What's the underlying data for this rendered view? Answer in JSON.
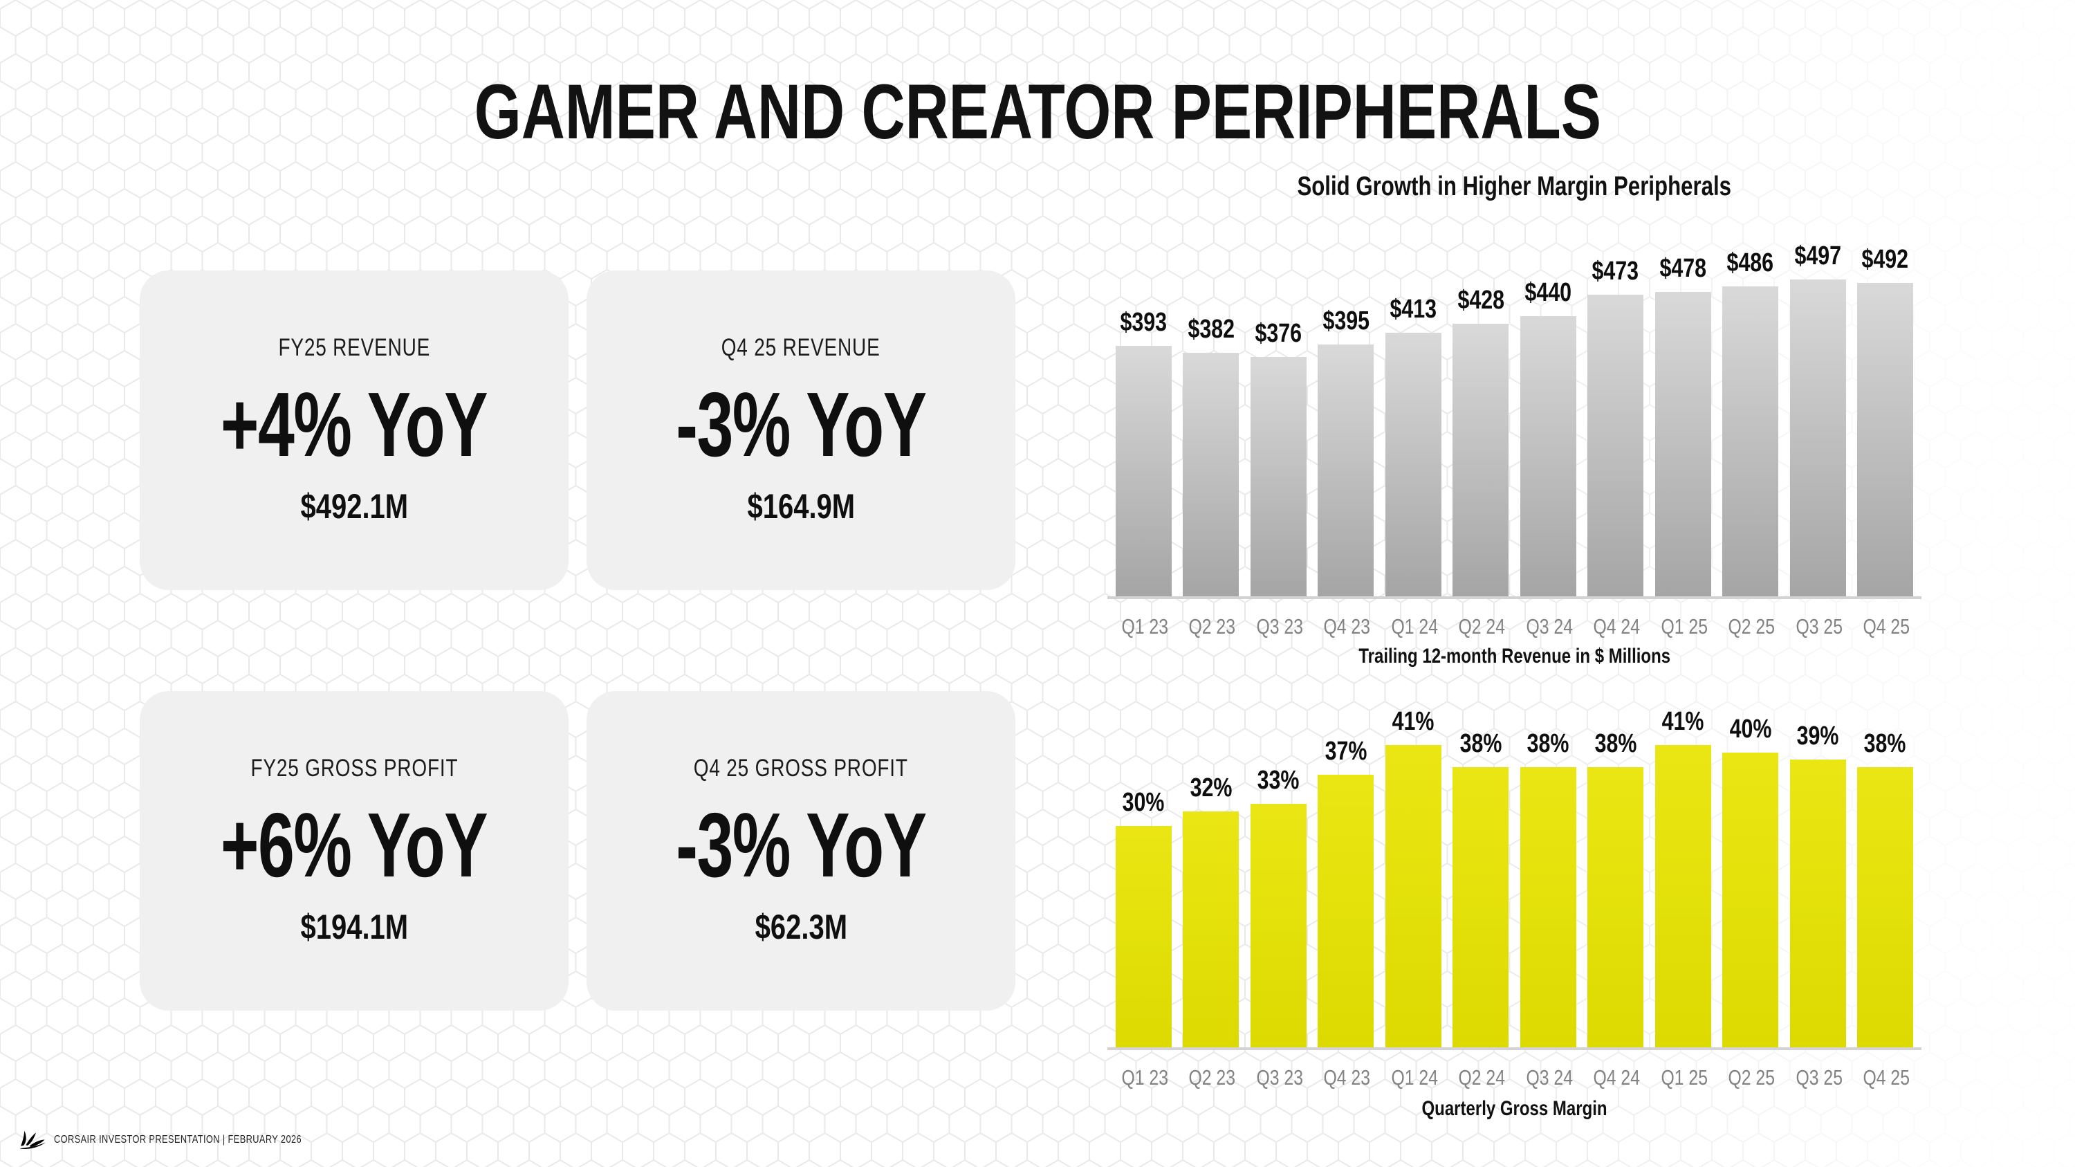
{
  "slide": {
    "title": "GAMER AND CREATOR PERIPHERALS",
    "footer": {
      "text": "CORSAIR INVESTOR PRESENTATION | FEBRUARY 2026",
      "logo_icon": "corsair-sails-logo"
    }
  },
  "cards": [
    {
      "label": "FY25 REVENUE",
      "delta": "+4% YoY",
      "value": "$492.1M"
    },
    {
      "label": "Q4 25 REVENUE",
      "delta": "-3% YoY",
      "value": "$164.9M"
    },
    {
      "label": "FY25 GROSS PROFIT",
      "delta": "+6% YoY",
      "value": "$194.1M"
    },
    {
      "label": "Q4 25 GROSS PROFIT",
      "delta": "-3% YoY",
      "value": "$62.3M"
    }
  ],
  "chart_data": [
    {
      "type": "bar",
      "title": "Solid Growth in Higher Margin Peripherals",
      "caption": "Trailing 12-month Revenue in $ Millions",
      "categories": [
        "Q1 23",
        "Q2 23",
        "Q3 23",
        "Q4 23",
        "Q1 24",
        "Q2 24",
        "Q3 24",
        "Q4 24",
        "Q1 25",
        "Q2 25",
        "Q3 25",
        "Q4 25"
      ],
      "values": [
        393,
        382,
        376,
        395,
        413,
        428,
        440,
        473,
        478,
        486,
        497,
        492
      ],
      "value_labels": [
        "$393",
        "$382",
        "$376",
        "$395",
        "$413",
        "$428",
        "$440",
        "$473",
        "$478",
        "$486",
        "$497",
        "$492"
      ],
      "ylim": [
        0,
        497
      ],
      "bar_style": "gray-gradient",
      "grid": false,
      "legend": "none",
      "yaxis_visible": false
    },
    {
      "type": "bar",
      "title": "",
      "caption": "Quarterly Gross Margin",
      "categories": [
        "Q1 23",
        "Q2 23",
        "Q3 23",
        "Q4 23",
        "Q1 24",
        "Q2 24",
        "Q3 24",
        "Q4 24",
        "Q1 25",
        "Q2 25",
        "Q3 25",
        "Q4 25"
      ],
      "values": [
        30,
        32,
        33,
        37,
        41,
        38,
        38,
        38,
        41,
        40,
        39,
        38
      ],
      "value_labels": [
        "30%",
        "32%",
        "33%",
        "37%",
        "41%",
        "38%",
        "38%",
        "38%",
        "41%",
        "40%",
        "39%",
        "38%"
      ],
      "ylim": [
        0,
        41
      ],
      "bar_style": "yellow",
      "grid": false,
      "legend": "none",
      "yaxis_visible": false
    }
  ],
  "colors": {
    "card_bg": "#f0f0f0",
    "accent_yellow": "#e4e00e",
    "bar_gray_top": "#d9d9d9",
    "bar_gray_bottom": "#a5a5a5",
    "baseline": "#d3d3d3",
    "axis_label": "#828282",
    "text": "#111111",
    "pattern_line": "#e9e9e9"
  }
}
